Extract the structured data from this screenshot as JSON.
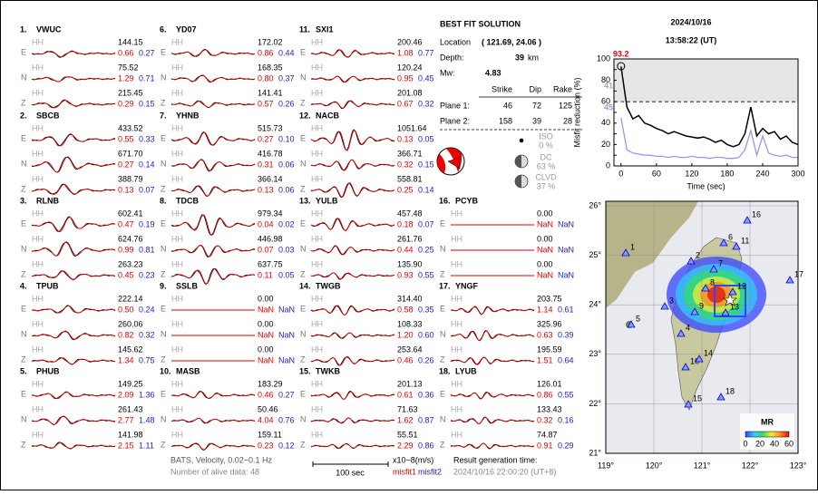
{
  "header": {
    "date": "2024/10/16",
    "time": "13:58:22  (UT)"
  },
  "labels": {
    "component_names": [
      "E",
      "N",
      "Z"
    ],
    "channel": "HH"
  },
  "stations": [
    {
      "number": "1.",
      "name": "VWUC",
      "components": [
        {
          "amp": "144.15",
          "misfit1": "0.66",
          "misfit2": "0.27"
        },
        {
          "amp": "75.52",
          "misfit1": "1.29",
          "misfit2": "0.71"
        },
        {
          "amp": "215.45",
          "misfit1": "0.29",
          "misfit2": "0.15"
        }
      ]
    },
    {
      "number": "2.",
      "name": "SBCB",
      "components": [
        {
          "amp": "433.52",
          "misfit1": "0.55",
          "misfit2": "0.33"
        },
        {
          "amp": "671.70",
          "misfit1": "0.27",
          "misfit2": "0.14"
        },
        {
          "amp": "388.79",
          "misfit1": "0.13",
          "misfit2": "0.07"
        }
      ]
    },
    {
      "number": "3.",
      "name": "RLNB",
      "components": [
        {
          "amp": "602.41",
          "misfit1": "0.47",
          "misfit2": "0.19"
        },
        {
          "amp": "624.76",
          "misfit1": "0.99",
          "misfit2": "0.81"
        },
        {
          "amp": "263.23",
          "misfit1": "0.45",
          "misfit2": "0.23"
        }
      ]
    },
    {
      "number": "4.",
      "name": "TPUB",
      "components": [
        {
          "amp": "222.14",
          "misfit1": "0.50",
          "misfit2": "0.24"
        },
        {
          "amp": "260.06",
          "misfit1": "0.82",
          "misfit2": "0.32"
        },
        {
          "amp": "145.62",
          "misfit1": "1.34",
          "misfit2": "0.75"
        }
      ]
    },
    {
      "number": "5.",
      "name": "PHUB",
      "components": [
        {
          "amp": "149.25",
          "misfit1": "2.09",
          "misfit2": "1.36"
        },
        {
          "amp": "261.43",
          "misfit1": "2.77",
          "misfit2": "1.48"
        },
        {
          "amp": "141.98",
          "misfit1": "2.15",
          "misfit2": "1.11"
        }
      ]
    },
    {
      "number": "6.",
      "name": "YD07",
      "components": [
        {
          "amp": "172.02",
          "misfit1": "0.86",
          "misfit2": "0.44"
        },
        {
          "amp": "168.35",
          "misfit1": "0.80",
          "misfit2": "0.37"
        },
        {
          "amp": "141.41",
          "misfit1": "0.57",
          "misfit2": "0.26"
        }
      ]
    },
    {
      "number": "7.",
      "name": "YHNB",
      "components": [
        {
          "amp": "515.73",
          "misfit1": "0.27",
          "misfit2": "0.10"
        },
        {
          "amp": "416.78",
          "misfit1": "0.31",
          "misfit2": "0.06"
        },
        {
          "amp": "366.14",
          "misfit1": "0.13",
          "misfit2": "0.06"
        }
      ]
    },
    {
      "number": "8.",
      "name": "TDCB",
      "components": [
        {
          "amp": "979.34",
          "misfit1": "0.04",
          "misfit2": "0.02"
        },
        {
          "amp": "446.98",
          "misfit1": "0.07",
          "misfit2": "0.03"
        },
        {
          "amp": "637.75",
          "misfit1": "0.11",
          "misfit2": "0.05"
        }
      ]
    },
    {
      "number": "9.",
      "name": "SSLB",
      "components": [
        {
          "amp": "0.00",
          "misfit1": "NaN",
          "misfit2": "NaN"
        },
        {
          "amp": "0.00",
          "misfit1": "NaN",
          "misfit2": "NaN"
        },
        {
          "amp": "0.00",
          "misfit1": "NaN",
          "misfit2": "NaN"
        }
      ]
    },
    {
      "number": "10.",
      "name": "MASB",
      "components": [
        {
          "amp": "183.29",
          "misfit1": "0.46",
          "misfit2": "0.27"
        },
        {
          "amp": "50.46",
          "misfit1": "4.04",
          "misfit2": "0.76"
        },
        {
          "amp": "159.11",
          "misfit1": "0.23",
          "misfit2": "0.12"
        }
      ]
    },
    {
      "number": "11.",
      "name": "SXI1",
      "components": [
        {
          "amp": "200.46",
          "misfit1": "1.08",
          "misfit2": "0.77"
        },
        {
          "amp": "120.24",
          "misfit1": "0.95",
          "misfit2": "0.45"
        },
        {
          "amp": "201.08",
          "misfit1": "0.67",
          "misfit2": "0.32"
        }
      ]
    },
    {
      "number": "12.",
      "name": "NACB",
      "components": [
        {
          "amp": "1051.64",
          "misfit1": "0.13",
          "misfit2": "0.05"
        },
        {
          "amp": "366.71",
          "misfit1": "0.32",
          "misfit2": "0.15"
        },
        {
          "amp": "558.81",
          "misfit1": "0.25",
          "misfit2": "0.14"
        }
      ]
    },
    {
      "number": "13.",
      "name": "YULB",
      "components": [
        {
          "amp": "457.48",
          "misfit1": "0.18",
          "misfit2": "0.07"
        },
        {
          "amp": "261.76",
          "misfit1": "0.44",
          "misfit2": "0.25"
        },
        {
          "amp": "135.90",
          "misfit1": "0.93",
          "misfit2": "0.55"
        }
      ]
    },
    {
      "number": "14.",
      "name": "TWGB",
      "components": [
        {
          "amp": "314.40",
          "misfit1": "0.58",
          "misfit2": "0.35"
        },
        {
          "amp": "108.33",
          "misfit1": "1.20",
          "misfit2": "0.60"
        },
        {
          "amp": "253.64",
          "misfit1": "0.46",
          "misfit2": "0.26"
        }
      ]
    },
    {
      "number": "15.",
      "name": "TWKB",
      "components": [
        {
          "amp": "201.13",
          "misfit1": "0.61",
          "misfit2": "0.36"
        },
        {
          "amp": "71.63",
          "misfit1": "1.62",
          "misfit2": "0.87"
        },
        {
          "amp": "55.51",
          "misfit1": "2.29",
          "misfit2": "0.86"
        }
      ]
    },
    {
      "number": "16.",
      "name": "PCYB",
      "components": [
        {
          "amp": "0.00",
          "misfit1": "NaN",
          "misfit2": "NaN"
        },
        {
          "amp": "0.00",
          "misfit1": "NaN",
          "misfit2": "NaN"
        },
        {
          "amp": "0.00",
          "misfit1": "NaN",
          "misfit2": "NaN"
        }
      ]
    },
    {
      "number": "17.",
      "name": "YNGF",
      "components": [
        {
          "amp": "203.75",
          "misfit1": "1.14",
          "misfit2": "0.61"
        },
        {
          "amp": "325.96",
          "misfit1": "0.63",
          "misfit2": "0.39"
        },
        {
          "amp": "195.59",
          "misfit1": "1.51",
          "misfit2": "0.64"
        }
      ]
    },
    {
      "number": "18.",
      "name": "LYUB",
      "components": [
        {
          "amp": "126.01",
          "misfit1": "0.86",
          "misfit2": "0.55"
        },
        {
          "amp": "133.43",
          "misfit1": "0.32",
          "misfit2": "0.16"
        },
        {
          "amp": "74.87",
          "misfit1": "0.91",
          "misfit2": "0.29"
        }
      ]
    }
  ],
  "solution": {
    "title": "BEST FIT SOLUTION",
    "location_label": "Location",
    "location": "( 121.69, 24.06 )",
    "depth_label": "Depth:",
    "depth": "39",
    "depth_unit": "km",
    "mw_label": "Mw:",
    "mw": "4.83",
    "plane_headers": [
      "Strike",
      "Dip",
      "Rake"
    ],
    "planes": [
      {
        "label": "Plane 1:",
        "values": [
          "46",
          "72",
          "125"
        ]
      },
      {
        "label": "Plane 2:",
        "values": [
          "158",
          "39",
          "28"
        ]
      }
    ],
    "components": [
      {
        "label": "ISO",
        "value": "0 %"
      },
      {
        "label": "DC",
        "value": "63 %"
      },
      {
        "label": "CLVD",
        "value": "37 %"
      }
    ]
  },
  "chart_data": {
    "type": "line",
    "y_label": "Misfit reduction (%)",
    "x_label": "Time (sec)",
    "x": [
      0,
      10,
      20,
      30,
      40,
      50,
      60,
      70,
      80,
      90,
      100,
      110,
      120,
      130,
      140,
      150,
      160,
      170,
      180,
      190,
      200,
      210,
      220,
      230,
      240,
      250,
      260,
      270,
      280,
      290,
      300
    ],
    "series": [
      {
        "color": "#ffffff",
        "values": [
          60,
          40,
          28,
          24,
          22,
          20,
          19,
          18,
          18,
          17,
          17,
          16,
          16,
          15,
          16,
          14,
          14,
          15,
          13,
          12,
          13,
          18,
          30,
          15,
          20,
          16,
          17,
          14,
          15,
          13,
          12
        ]
      },
      {
        "color": "#9999ee",
        "values": [
          45,
          15,
          12,
          11,
          10,
          10,
          9,
          9,
          8,
          9,
          8,
          8,
          9,
          8,
          8,
          7,
          8,
          8,
          7,
          7,
          8,
          15,
          33,
          10,
          28,
          12,
          10,
          9,
          10,
          8,
          8
        ]
      },
      {
        "color": "#000000",
        "values": [
          93,
          55,
          44,
          47,
          40,
          38,
          35,
          33,
          30,
          32,
          30,
          28,
          27,
          26,
          27,
          25,
          22,
          24,
          20,
          18,
          20,
          30,
          55,
          28,
          35,
          30,
          32,
          25,
          28,
          22,
          20
        ]
      }
    ],
    "peak": 93.2,
    "annotations": [
      "41",
      "45"
    ],
    "reference_line": 60,
    "xlim": [
      -12,
      300
    ],
    "xticks": [
      0,
      60,
      120,
      180,
      240,
      300
    ],
    "ylim": [
      0,
      100
    ],
    "yticks": [
      0,
      10,
      20,
      30,
      40,
      50,
      60,
      70,
      80,
      90,
      100
    ]
  },
  "map": {
    "xlim": [
      119,
      123
    ],
    "ylim": [
      21,
      26
    ],
    "xticks": [
      {
        "value": 119,
        "label": "119°"
      },
      {
        "value": 120,
        "label": "120°"
      },
      {
        "value": 121,
        "label": "121°"
      },
      {
        "value": 122,
        "label": "122°"
      },
      {
        "value": 123,
        "label": "123°"
      }
    ],
    "yticks": [
      {
        "value": 21,
        "label": "21°"
      },
      {
        "value": 22,
        "label": "22°"
      },
      {
        "value": 23,
        "label": "23°"
      },
      {
        "value": 24,
        "label": "24°"
      },
      {
        "value": 25,
        "label": "25°"
      },
      {
        "value": 26,
        "label": "26°"
      }
    ],
    "station_labels": [
      "1",
      "2",
      "3",
      "4",
      "5",
      "6",
      "7",
      "8",
      "9",
      "10",
      "11",
      "12",
      "13",
      "14",
      "15",
      "16",
      "17",
      "18"
    ],
    "colorbar_title": "MR",
    "colorbar_ticks": [
      0,
      20,
      40,
      60
    ]
  },
  "footer": {
    "network": "BATS, Velocity, 0.02~0.1 Hz",
    "alive": "Number of alive data: 48",
    "scale": "100 sec",
    "unit": "x10−8(m/s)",
    "misfit1": "misfit1",
    "misfit2": "misfit2",
    "result_label": "Result generation time:",
    "result_time": "2024/10/16 22:00:20 (UT+8)"
  }
}
